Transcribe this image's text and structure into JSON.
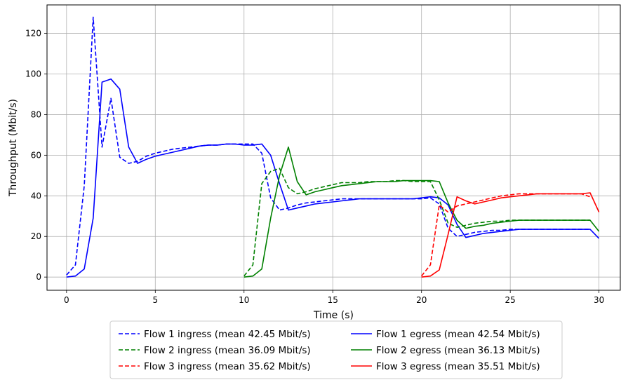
{
  "chart_data": {
    "type": "line",
    "xlabel": "Time (s)",
    "ylabel": "Throughput (Mbit/s)",
    "xlim": [
      -1.1,
      31.2
    ],
    "ylim": [
      -6.5,
      134
    ],
    "xticks": [
      0,
      5,
      10,
      15,
      20,
      25,
      30
    ],
    "yticks": [
      0,
      20,
      40,
      60,
      80,
      100,
      120
    ],
    "grid": true,
    "legend_position": "bottom-center",
    "series": [
      {
        "name": "Flow 1 ingress (mean 42.45 Mbit/s)",
        "color": "#0000ff",
        "dash": true,
        "x": [
          0,
          0.5,
          1.0,
          1.5,
          2.0,
          2.5,
          3.0,
          3.5,
          4.0,
          4.5,
          5.0,
          5.5,
          6.0,
          6.5,
          7.0,
          7.5,
          8.0,
          8.5,
          9.0,
          9.5,
          10.0,
          10.5,
          11.0,
          11.5,
          12.0,
          12.5,
          13.0,
          13.5,
          14.0,
          14.5,
          15.0,
          15.5,
          16.0,
          16.5,
          17.0,
          17.5,
          18.0,
          18.5,
          19.0,
          19.5,
          20.0,
          20.5,
          21.0,
          21.5,
          22.0,
          22.5,
          23.0,
          23.5,
          24.0,
          24.5,
          25.0,
          25.5,
          26.0,
          26.5,
          27.0,
          27.5,
          28.0,
          28.5,
          29.0,
          29.5
        ],
        "y": [
          1,
          6,
          45,
          128,
          64,
          88,
          59,
          56,
          57,
          59.5,
          61,
          62,
          63,
          63.5,
          64,
          64.5,
          65,
          65,
          65.5,
          65.5,
          65.5,
          65.5,
          61,
          39,
          33,
          34,
          35.5,
          36.5,
          37,
          37.5,
          38,
          38.5,
          38.5,
          38.5,
          38.5,
          38.5,
          38.5,
          38.5,
          38.5,
          38.5,
          38.5,
          39,
          36,
          24,
          20,
          21,
          22,
          22.5,
          23,
          23,
          23.5,
          23.5,
          23.5,
          23.5,
          23.5,
          23.5,
          23.5,
          23.5,
          23.5,
          23.5
        ]
      },
      {
        "name": "Flow 1 egress (mean 42.54 Mbit/s)",
        "color": "#0000ff",
        "dash": false,
        "x": [
          0,
          0.5,
          1.0,
          1.5,
          2.0,
          2.5,
          3.0,
          3.5,
          4.0,
          4.5,
          5.0,
          5.5,
          6.0,
          6.5,
          7.0,
          7.5,
          8.0,
          8.5,
          9.0,
          9.5,
          10.0,
          10.5,
          11.0,
          11.5,
          12.0,
          12.5,
          13.0,
          13.5,
          14.0,
          14.5,
          15.0,
          15.5,
          16.0,
          16.5,
          17.0,
          17.5,
          18.0,
          18.5,
          19.0,
          19.5,
          20.0,
          20.5,
          21.0,
          21.5,
          22.0,
          22.5,
          23.0,
          23.5,
          24.0,
          24.5,
          25.0,
          25.5,
          26.0,
          26.5,
          27.0,
          27.5,
          28.0,
          28.5,
          29.0,
          29.5,
          30.0
        ],
        "y": [
          0,
          0.5,
          4,
          29,
          96,
          97.5,
          92.5,
          64,
          56,
          58,
          59.5,
          60.5,
          61.5,
          62.5,
          63.5,
          64.5,
          65,
          65,
          65.5,
          65.5,
          65,
          65,
          65.5,
          60,
          46,
          33,
          34,
          35,
          36,
          36.5,
          37,
          37.5,
          38,
          38.5,
          38.5,
          38.5,
          38.5,
          38.5,
          38.5,
          38.5,
          39,
          39.5,
          39,
          35.5,
          26,
          19.5,
          20.5,
          21.5,
          22,
          22.5,
          23,
          23.5,
          23.5,
          23.5,
          23.5,
          23.5,
          23.5,
          23.5,
          23.5,
          23.5,
          19
        ]
      },
      {
        "name": "Flow 2 ingress (mean 36.09 Mbit/s)",
        "color": "#008000",
        "dash": true,
        "x": [
          10.0,
          10.5,
          11.0,
          11.5,
          12.0,
          12.5,
          13.0,
          13.5,
          14.0,
          14.5,
          15.0,
          15.5,
          16.0,
          16.5,
          17.0,
          17.5,
          18.0,
          18.5,
          19.0,
          19.5,
          20.0,
          20.5,
          21.0,
          21.5,
          22.0,
          22.5,
          23.0,
          23.5,
          24.0,
          24.5,
          25.0,
          25.5,
          26.0,
          26.5,
          27.0,
          27.5,
          28.0,
          28.5,
          29.0,
          29.5
        ],
        "y": [
          0.5,
          6,
          46,
          52,
          53.5,
          44,
          41,
          42,
          43.5,
          44.5,
          45.5,
          46.5,
          46.5,
          46.5,
          47,
          47,
          47,
          47.5,
          47.5,
          47,
          47,
          47,
          38,
          26.5,
          24.5,
          25.5,
          26.5,
          27,
          27.5,
          27.5,
          28,
          28,
          28,
          28,
          28,
          28,
          28,
          28,
          28,
          28
        ]
      },
      {
        "name": "Flow 2 egress (mean 36.13 Mbit/s)",
        "color": "#008000",
        "dash": false,
        "x": [
          10.0,
          10.5,
          11.0,
          11.5,
          12.0,
          12.5,
          13.0,
          13.5,
          14.0,
          14.5,
          15.0,
          15.5,
          16.0,
          16.5,
          17.0,
          17.5,
          18.0,
          18.5,
          19.0,
          19.5,
          20.0,
          20.5,
          21.0,
          21.5,
          22.0,
          22.5,
          23.0,
          23.5,
          24.0,
          24.5,
          25.0,
          25.5,
          26.0,
          26.5,
          27.0,
          27.5,
          28.0,
          28.5,
          29.0,
          29.5,
          30.0
        ],
        "y": [
          0,
          0.5,
          4,
          29,
          50,
          64,
          47,
          40.5,
          42,
          43,
          44,
          45,
          45.5,
          46,
          46.5,
          47,
          47,
          47,
          47.5,
          47.5,
          47.5,
          47.5,
          47,
          36.5,
          28,
          24,
          25,
          25.5,
          26.5,
          27,
          27.5,
          28,
          28,
          28,
          28,
          28,
          28,
          28,
          28,
          28,
          22.5
        ]
      },
      {
        "name": "Flow 3 ingress (mean 35.62 Mbit/s)",
        "color": "#ff0000",
        "dash": true,
        "x": [
          20.0,
          20.5,
          21.0,
          21.5,
          22.0,
          22.5,
          23.0,
          23.5,
          24.0,
          24.5,
          25.0,
          25.5,
          26.0,
          26.5,
          27.0,
          27.5,
          28.0,
          28.5,
          29.0,
          29.5
        ],
        "y": [
          0.5,
          6,
          35.5,
          32,
          35,
          36,
          37,
          38,
          39,
          40,
          40.5,
          41,
          41,
          41,
          41,
          41,
          41,
          41,
          41,
          39.5
        ]
      },
      {
        "name": "Flow 3 egress (mean 35.51 Mbit/s)",
        "color": "#ff0000",
        "dash": false,
        "x": [
          20.0,
          20.5,
          21.0,
          21.5,
          22.0,
          22.5,
          23.0,
          23.5,
          24.0,
          24.5,
          25.0,
          25.5,
          26.0,
          26.5,
          27.0,
          27.5,
          28.0,
          28.5,
          29.0,
          29.5,
          30.0
        ],
        "y": [
          0,
          0.5,
          3.5,
          21,
          39.5,
          37.5,
          36,
          37,
          38,
          39,
          39.5,
          40,
          40.5,
          41,
          41,
          41,
          41,
          41,
          41,
          41.5,
          32
        ]
      }
    ]
  }
}
